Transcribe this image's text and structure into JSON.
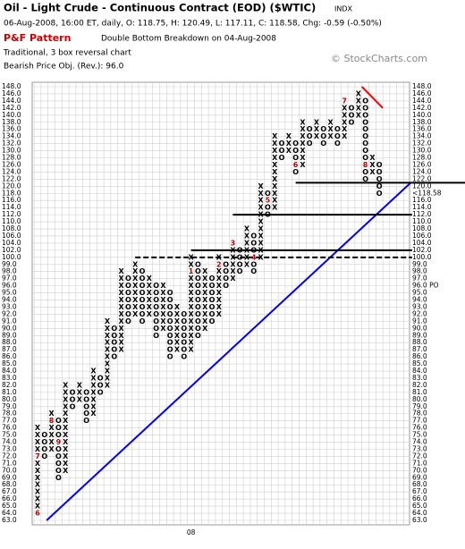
{
  "chart_data": {
    "type": "point-and-figure",
    "title": "Oil - Light Crude - Continuous Contract (EOD) ($WTIC)",
    "exchange": "INDX",
    "subtitle": "06-Aug-2008, 16:00 ET, daily, O: 118.75, H: 120.49, L: 117.11, C: 118.58, Chg: -0.59 (-0.50%)",
    "pattern_label": "P&F Pattern",
    "pattern": "Double Bottom Breakdown on 04-Aug-2008",
    "method": "Traditional, 3 box reversal chart",
    "objective": "Bearish Price Obj. (Rev.): 96.0",
    "watermark": "© StockCharts.com",
    "x_labels": [
      {
        "column": 22,
        "label": "08"
      }
    ],
    "grid": true,
    "yticks": [
      {
        "value": 63,
        "label": "63.0"
      },
      {
        "value": 64,
        "label": "64.0"
      },
      {
        "value": 65,
        "label": "65.0"
      },
      {
        "value": 66,
        "label": "66.0"
      },
      {
        "value": 67,
        "label": "67.0"
      },
      {
        "value": 68,
        "label": "68.0"
      },
      {
        "value": 69,
        "label": "69.0"
      },
      {
        "value": 70,
        "label": "70.0"
      },
      {
        "value": 71,
        "label": "71.0"
      },
      {
        "value": 72,
        "label": "72.0"
      },
      {
        "value": 73,
        "label": "73.0"
      },
      {
        "value": 74,
        "label": "74.0"
      },
      {
        "value": 75,
        "label": "75.0"
      },
      {
        "value": 76,
        "label": "76.0"
      },
      {
        "value": 77,
        "label": "77.0"
      },
      {
        "value": 78,
        "label": "78.0"
      },
      {
        "value": 79,
        "label": "79.0"
      },
      {
        "value": 80,
        "label": "80.0"
      },
      {
        "value": 81,
        "label": "81.0"
      },
      {
        "value": 82,
        "label": "82.0"
      },
      {
        "value": 83,
        "label": "83.0"
      },
      {
        "value": 84,
        "label": "84.0"
      },
      {
        "value": 85,
        "label": "85.0"
      },
      {
        "value": 86,
        "label": "86.0"
      },
      {
        "value": 87,
        "label": "87.0"
      },
      {
        "value": 88,
        "label": "88.0"
      },
      {
        "value": 89,
        "label": "89.0"
      },
      {
        "value": 90,
        "label": "90.0"
      },
      {
        "value": 91,
        "label": "91.0"
      },
      {
        "value": 92,
        "label": "92.0"
      },
      {
        "value": 93,
        "label": "93.0"
      },
      {
        "value": 94,
        "label": "94.0"
      },
      {
        "value": 95,
        "label": "95.0"
      },
      {
        "value": 96,
        "label": "96.0",
        "color": "#cc0000"
      },
      {
        "value": 97,
        "label": "97.0"
      },
      {
        "value": 98,
        "label": "98.0"
      },
      {
        "value": 99,
        "label": "99.0"
      },
      {
        "value": 100,
        "label": "100.0"
      },
      {
        "value": 102,
        "label": "102.0"
      },
      {
        "value": 104,
        "label": "104.0"
      },
      {
        "value": 106,
        "label": "106.0"
      },
      {
        "value": 108,
        "label": "108.0"
      },
      {
        "value": 110,
        "label": "110.0"
      },
      {
        "value": 112,
        "label": "112.0"
      },
      {
        "value": 114,
        "label": "114.0"
      },
      {
        "value": 116,
        "label": "116.0"
      },
      {
        "value": 118,
        "label": "118.0",
        "color": "#cc0000"
      },
      {
        "value": 120,
        "label": "120.0"
      },
      {
        "value": 122,
        "label": "122.0"
      },
      {
        "value": 124,
        "label": "124.0"
      },
      {
        "value": 126,
        "label": "126.0"
      },
      {
        "value": 128,
        "label": "128.0"
      },
      {
        "value": 130,
        "label": "130.0"
      },
      {
        "value": 132,
        "label": "132.0"
      },
      {
        "value": 134,
        "label": "134.0"
      },
      {
        "value": 136,
        "label": "136.0"
      },
      {
        "value": 138,
        "label": "138.0"
      },
      {
        "value": 140,
        "label": "140.0"
      },
      {
        "value": 142,
        "label": "142.0"
      },
      {
        "value": 144,
        "label": "144.0"
      },
      {
        "value": 146,
        "label": "146.0"
      },
      {
        "value": 148,
        "label": "148.0"
      }
    ],
    "right_annotations": [
      {
        "value": 118,
        "label": "<118.58",
        "color": "#cc0000"
      },
      {
        "value": 96,
        "label": "96.0 PO",
        "color": "#cc0000"
      }
    ],
    "columns": [
      {
        "box": "X",
        "low": 64,
        "high": 76
      },
      {
        "box": "O",
        "low": 72,
        "high": 75
      },
      {
        "box": "X",
        "low": 73,
        "high": 78
      },
      {
        "box": "O",
        "low": 69,
        "high": 77
      },
      {
        "box": "X",
        "low": 70,
        "high": 82
      },
      {
        "box": "O",
        "low": 79,
        "high": 81
      },
      {
        "box": "X",
        "low": 80,
        "high": 82
      },
      {
        "box": "O",
        "low": 77,
        "high": 81
      },
      {
        "box": "X",
        "low": 78,
        "high": 84
      },
      {
        "box": "O",
        "low": 81,
        "high": 83
      },
      {
        "box": "X",
        "low": 82,
        "high": 91
      },
      {
        "box": "O",
        "low": 86,
        "high": 90
      },
      {
        "box": "X",
        "low": 87,
        "high": 98
      },
      {
        "box": "O",
        "low": 91,
        "high": 97
      },
      {
        "box": "X",
        "low": 92,
        "high": 99
      },
      {
        "box": "O",
        "low": 91,
        "high": 98
      },
      {
        "box": "X",
        "low": 92,
        "high": 97
      },
      {
        "box": "O",
        "low": 89,
        "high": 96
      },
      {
        "box": "X",
        "low": 90,
        "high": 96
      },
      {
        "box": "O",
        "low": 86,
        "high": 95
      },
      {
        "box": "X",
        "low": 87,
        "high": 93
      },
      {
        "box": "O",
        "low": 86,
        "high": 92
      },
      {
        "box": "X",
        "low": 87,
        "high": 100
      },
      {
        "box": "O",
        "low": 89,
        "high": 99
      },
      {
        "box": "X",
        "low": 90,
        "high": 98
      },
      {
        "box": "O",
        "low": 91,
        "high": 97
      },
      {
        "box": "X",
        "low": 92,
        "high": 100
      },
      {
        "box": "O",
        "low": 96,
        "high": 99
      },
      {
        "box": "X",
        "low": 97,
        "high": 104
      },
      {
        "box": "O",
        "low": 98,
        "high": 102
      },
      {
        "box": "X",
        "low": 99,
        "high": 108
      },
      {
        "box": "O",
        "low": 98,
        "high": 106
      },
      {
        "box": "X",
        "low": 100,
        "high": 120
      },
      {
        "box": "O",
        "low": 112,
        "high": 118
      },
      {
        "box": "X",
        "low": 114,
        "high": 134
      },
      {
        "box": "O",
        "low": 128,
        "high": 132
      },
      {
        "box": "X",
        "low": 130,
        "high": 134
      },
      {
        "box": "O",
        "low": 124,
        "high": 132
      },
      {
        "box": "X",
        "low": 126,
        "high": 138
      },
      {
        "box": "O",
        "low": 132,
        "high": 136
      },
      {
        "box": "X",
        "low": 134,
        "high": 138
      },
      {
        "box": "O",
        "low": 132,
        "high": 136
      },
      {
        "box": "X",
        "low": 134,
        "high": 138
      },
      {
        "box": "O",
        "low": 132,
        "high": 136
      },
      {
        "box": "X",
        "low": 134,
        "high": 144
      },
      {
        "box": "O",
        "low": 138,
        "high": 142
      },
      {
        "box": "X",
        "low": 140,
        "high": 146
      },
      {
        "box": "O",
        "low": 122,
        "high": 144
      },
      {
        "box": "X",
        "low": 124,
        "high": 128
      },
      {
        "box": "O",
        "low": 118,
        "high": 126
      }
    ],
    "month_marks": [
      {
        "column": 0,
        "value": 64,
        "label": "6"
      },
      {
        "column": 0,
        "value": 72,
        "label": "7"
      },
      {
        "column": 2,
        "value": 77,
        "label": "8"
      },
      {
        "column": 3,
        "value": 74,
        "label": "9"
      },
      {
        "column": 22,
        "value": 98,
        "label": "1"
      },
      {
        "column": 26,
        "value": 99,
        "label": "2"
      },
      {
        "column": 28,
        "value": 104,
        "label": "3"
      },
      {
        "column": 31,
        "value": 100,
        "label": "4"
      },
      {
        "column": 33,
        "value": 116,
        "label": "5"
      },
      {
        "column": 37,
        "value": 126,
        "label": "6"
      },
      {
        "column": 44,
        "value": 144,
        "label": "7"
      },
      {
        "column": 47,
        "value": 126,
        "label": "8"
      }
    ],
    "lines": [
      {
        "from": [
          1.3,
          63
        ],
        "to": [
          53.5,
          121
        ],
        "color": "#0000ff",
        "width": 2
      },
      {
        "from": [
          46.5,
          148
        ],
        "to": [
          49.5,
          142
        ],
        "color": "#ff0000",
        "width": 2
      },
      {
        "from": [
          37,
          121
        ],
        "to": [
          62,
          121
        ],
        "color": "#000000",
        "width": 2
      },
      {
        "from": [
          28,
          112
        ],
        "to": [
          53.7,
          112
        ],
        "color": "#000000",
        "width": 2
      },
      {
        "from": [
          22,
          102
        ],
        "to": [
          53.7,
          102
        ],
        "color": "#000000",
        "width": 2
      },
      {
        "from": [
          14,
          100
        ],
        "to": [
          53.7,
          100
        ],
        "color": "#000000",
        "width": 2,
        "dashed": true
      }
    ]
  }
}
